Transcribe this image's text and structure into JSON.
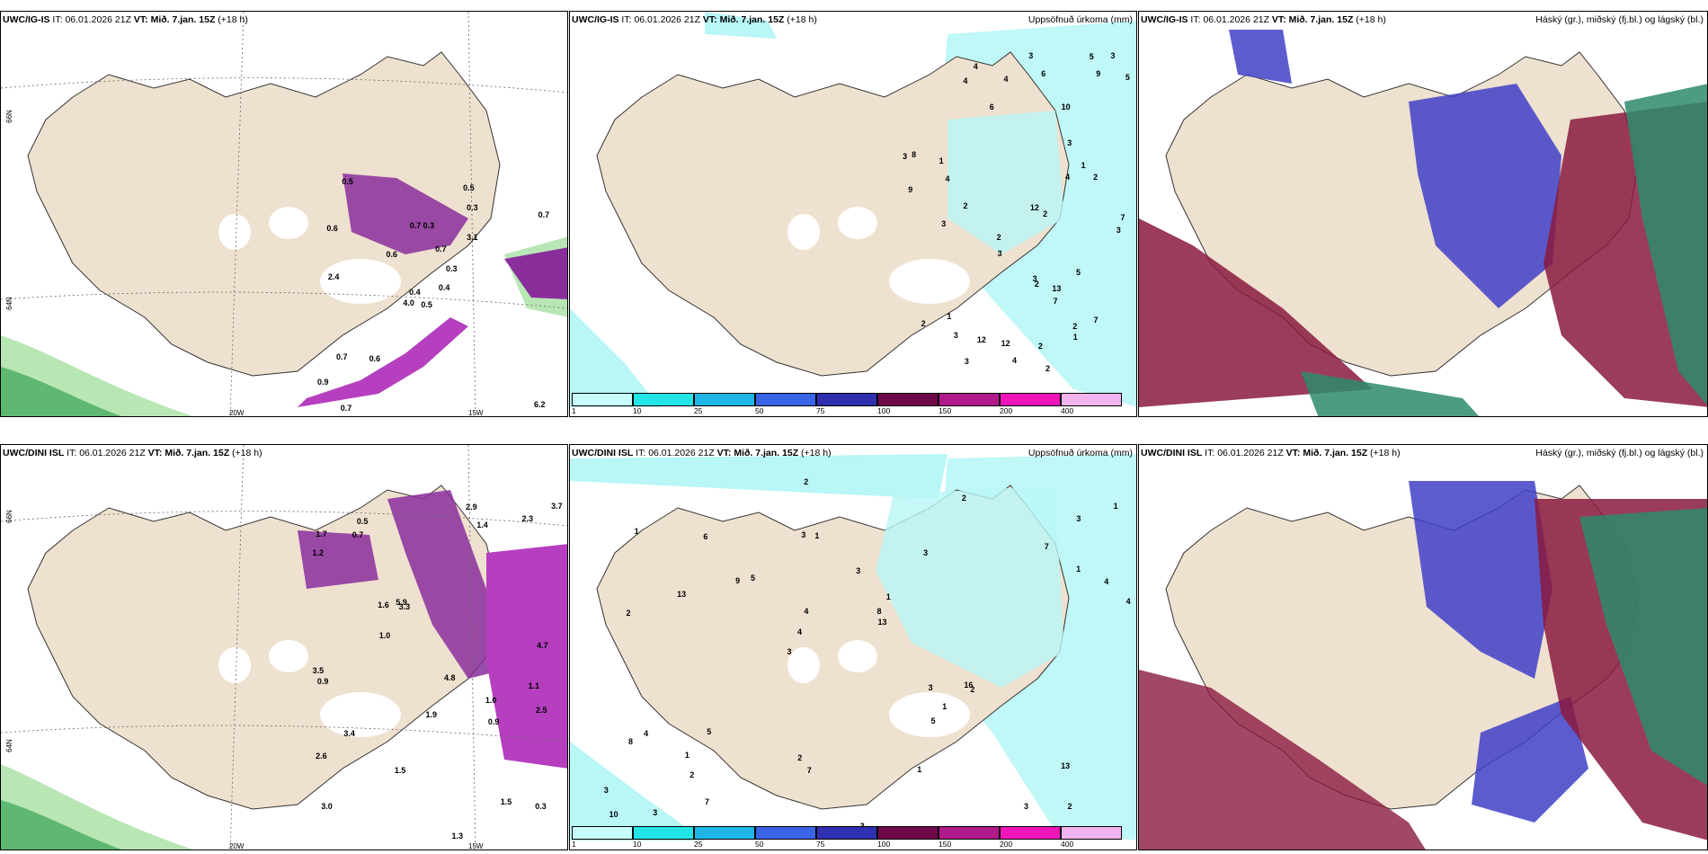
{
  "panels": [
    {
      "id": "p1",
      "model": "UWC/IG-IS",
      "it_label": "IT:",
      "it_value": "06.01.2026 21Z",
      "vt_label": "VT:",
      "vt_value": "Mið. 7.jan. 15Z",
      "lead": "(+18 h)",
      "right_title": ""
    },
    {
      "id": "p2",
      "model": "UWC/IG-IS",
      "it_label": "IT:",
      "it_value": "06.01.2026 21Z",
      "vt_label": "VT:",
      "vt_value": "Mið. 7.jan. 15Z",
      "lead": "(+18 h)",
      "right_title": "Uppsöfnuð úrkoma (mm)"
    },
    {
      "id": "p3",
      "model": "UWC/IG-IS",
      "it_label": "IT:",
      "it_value": "06.01.2026 21Z",
      "vt_label": "VT:",
      "vt_value": "Mið. 7.jan. 15Z",
      "lead": "(+18 h)",
      "right_title": "Háský (gr.), miðský (fj.bl.) og lágský (bl.)"
    },
    {
      "id": "p4",
      "model": "UWC/DINI ISL",
      "it_label": "IT:",
      "it_value": "06.01.2026 21Z",
      "vt_label": "VT:",
      "vt_value": "Mið. 7.jan. 15Z",
      "lead": "(+18 h)",
      "right_title": ""
    },
    {
      "id": "p5",
      "model": "UWC/DINI ISL",
      "it_label": "IT:",
      "it_value": "06.01.2026 21Z",
      "vt_label": "VT:",
      "vt_value": "Mið. 7.jan. 15Z",
      "lead": "(+18 h)",
      "right_title": "Uppsöfnuð úrkoma (mm)"
    },
    {
      "id": "p6",
      "model": "UWC/DINI ISL",
      "it_label": "IT:",
      "it_value": "06.01.2026 21Z",
      "vt_label": "VT:",
      "vt_value": "Mið. 7.jan. 15Z",
      "lead": "(+18 h)",
      "right_title": "Háský (gr.), miðský (fj.bl.) og lágský (bl.)"
    }
  ],
  "axis_labels": {
    "lat66": "66N",
    "lon20": "20W",
    "lon15": "15W",
    "lat64": "64N"
  },
  "colorbar": {
    "levels": [
      "1",
      "10",
      "25",
      "50",
      "75",
      "100",
      "150",
      "200",
      "400"
    ],
    "colors": [
      "#c8fbfb",
      "#22e5e8",
      "#1eb6e6",
      "#3a64e6",
      "#2f2fb0",
      "#6e0a4a",
      "#b01a8a",
      "#f015b8",
      "#f2b4ee"
    ]
  },
  "colors": {
    "land": "#efe1cf",
    "precip_light": "#b9f6f6",
    "snow_purple": "#8a2e9c",
    "snow_light": "#c98fe0",
    "green_light": "#b9e6b5",
    "green_mid": "#5fb871",
    "cloud_blue": "#3f3fc7",
    "cloud_red": "#8a1a40",
    "cloud_green": "#2e8b6c"
  },
  "labels": {
    "p1": [
      "0.5",
      "0.6",
      "0.4",
      "0.9",
      "0.3",
      "0.6",
      "0.5",
      "0.3",
      "0.3",
      "0.4",
      "0.5",
      "6.2",
      "2.4",
      "0.7",
      "4.0",
      "3.1",
      "0.7",
      "0.7",
      "0.7",
      "0.7",
      "0.6"
    ],
    "p2": [
      "2",
      "4",
      "1",
      "1",
      "1",
      "2",
      "3",
      "2",
      "3",
      "3",
      "2",
      "3",
      "2",
      "3",
      "4",
      "5",
      "9",
      "9",
      "5",
      "2",
      "2",
      "2",
      "3",
      "1",
      "2",
      "3",
      "3",
      "4",
      "4",
      "6",
      "7",
      "3",
      "10",
      "12",
      "4",
      "12",
      "3",
      "8",
      "7",
      "13",
      "4",
      "12",
      "5",
      "7",
      "6"
    ],
    "p4": [
      "1.0",
      "1.1",
      "3.0",
      "0.5",
      "3.3",
      "1.5",
      "2.6",
      "1.4",
      "1.6",
      "1.3",
      "1.2",
      "3.5",
      "1.7",
      "0.3",
      "1.5",
      "4.7",
      "1.9",
      "4.8",
      "5.9",
      "3.4",
      "3.7",
      "2.3",
      "1.0",
      "2.5",
      "2.9",
      "0.7",
      "0.9",
      "0.9"
    ],
    "p5": [
      "2",
      "2",
      "3",
      "3",
      "3",
      "3",
      "3",
      "3",
      "4",
      "5",
      "3",
      "2",
      "1",
      "1",
      "2",
      "1",
      "2",
      "4",
      "3",
      "1",
      "4",
      "2",
      "4",
      "6",
      "2",
      "5",
      "3",
      "13",
      "16",
      "3",
      "9",
      "13",
      "5",
      "7",
      "4",
      "8",
      "10",
      "7",
      "13",
      "8",
      "7",
      "1",
      "1",
      "1",
      "1"
    ]
  }
}
